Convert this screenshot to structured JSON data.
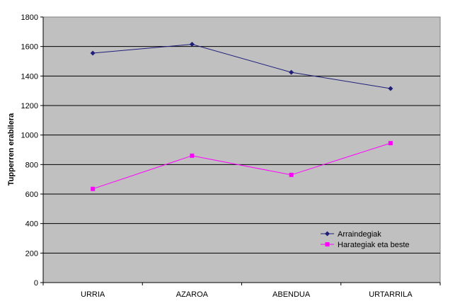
{
  "chart_data": {
    "type": "line",
    "title": "",
    "xlabel": "",
    "ylabel": "Tupperren erabilera",
    "categories": [
      "URRIA",
      "AZAROA",
      "ABENDUA",
      "URTARRILA"
    ],
    "series": [
      {
        "name": "Arraindegiak",
        "values": [
          1555,
          1615,
          1425,
          1315
        ],
        "color": "#1f1f7a",
        "marker": "diamond"
      },
      {
        "name": "Harategiak eta beste",
        "values": [
          635,
          860,
          730,
          945
        ],
        "color": "#ff00ff",
        "marker": "square"
      }
    ],
    "ylim": [
      0,
      1800
    ],
    "yticks": [
      0,
      200,
      400,
      600,
      800,
      1000,
      1200,
      1400,
      1600,
      1800
    ],
    "grid": true,
    "legend": "lower-right",
    "plot_background": "#c0c0c0"
  }
}
